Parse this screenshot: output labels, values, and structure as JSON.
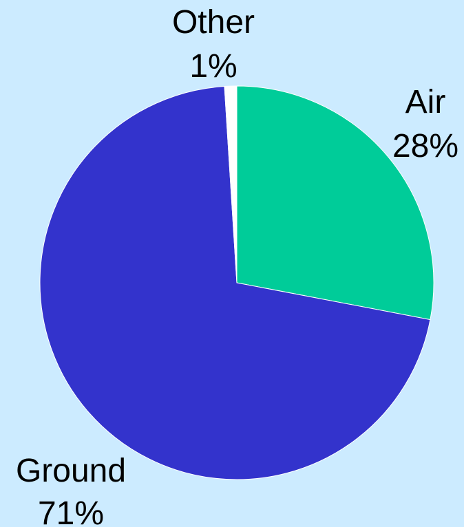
{
  "colors": {
    "background": "#CCEBFF",
    "slice_edge": "#FFFFFF"
  },
  "chart_data": {
    "type": "pie",
    "categories": [
      "Air",
      "Ground",
      "Other"
    ],
    "values": [
      28,
      71,
      1
    ],
    "value_labels": [
      "28%",
      "71%",
      "1%"
    ],
    "colors": [
      "#00CC99",
      "#3333CC",
      "#FFFFFF"
    ],
    "start": "12 o'clock",
    "direction": "clockwise"
  }
}
